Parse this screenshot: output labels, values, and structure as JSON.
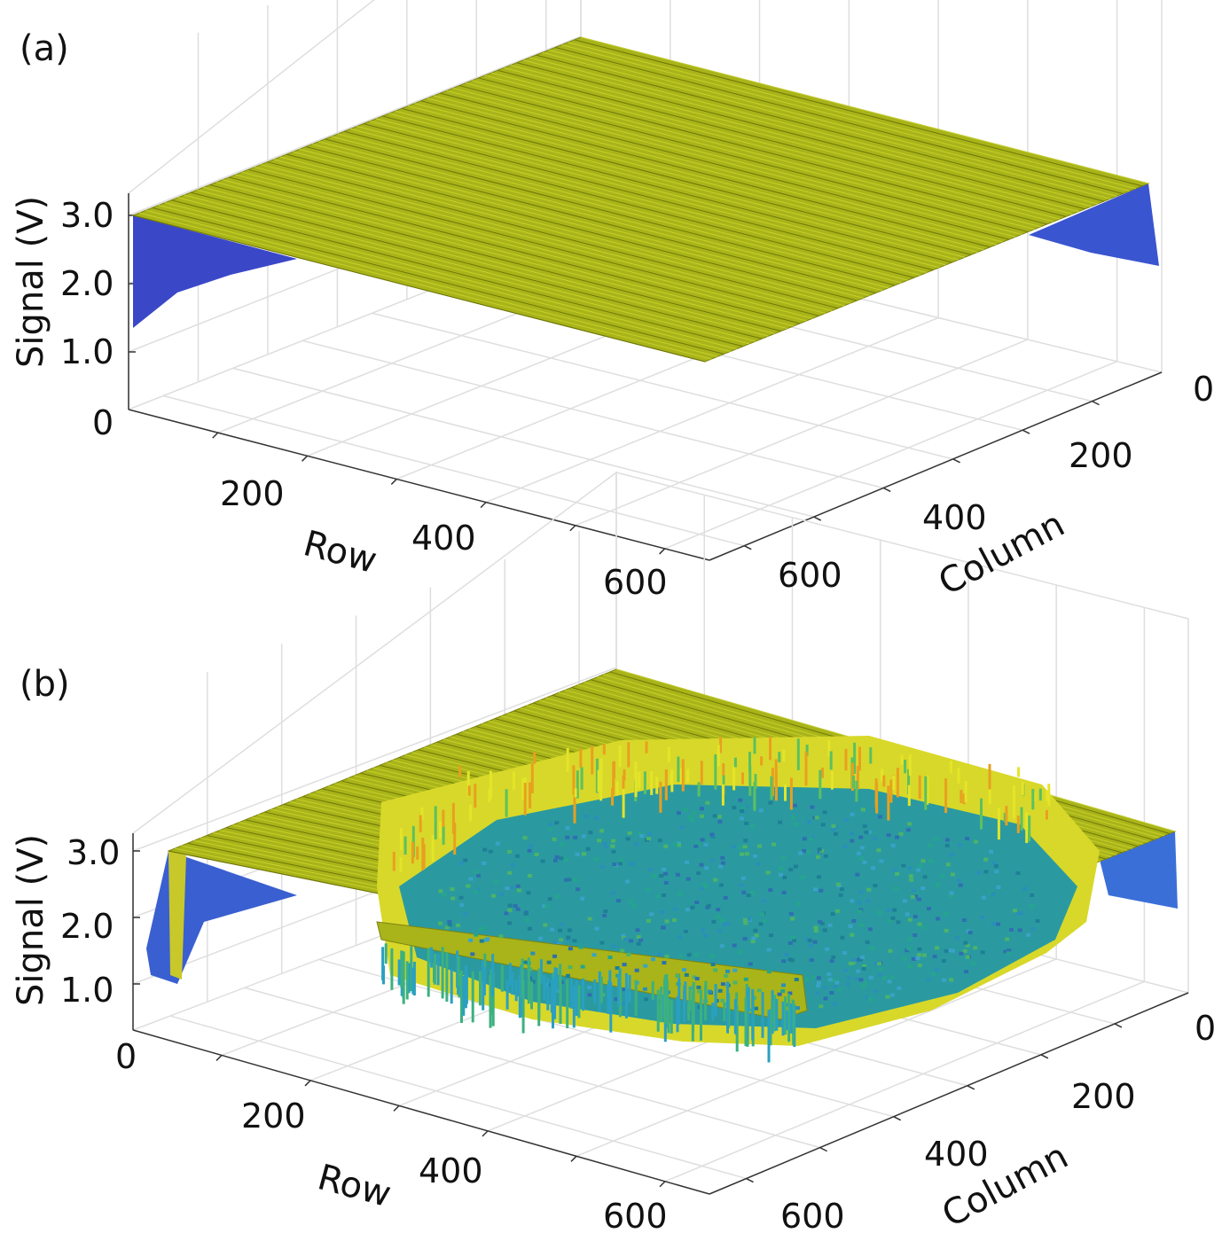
{
  "chart_data": [
    {
      "type": "surface",
      "panel_label": "(a)",
      "title": "",
      "zlabel": "Signal (V)",
      "xlabel": "Row",
      "ylabel": "Column",
      "z_ticks": [
        "3.0",
        "2.0",
        "1.0",
        "0"
      ],
      "row_ticks": [
        "200",
        "400",
        "600"
      ],
      "column_ticks": [
        "0",
        "200",
        "400",
        "600"
      ],
      "zlim": [
        0,
        3.2
      ],
      "row_range": [
        0,
        650
      ],
      "column_range": [
        0,
        650
      ],
      "description_values": {
        "plateau_signal_V": 3.0,
        "edge_min_signal_V": 1.3
      },
      "colors": {
        "plateau": "#a9b51a",
        "edge": "#3a4fd0"
      }
    },
    {
      "type": "surface",
      "panel_label": "(b)",
      "title": "",
      "zlabel": "Signal (V)",
      "xlabel": "Row",
      "ylabel": "Column",
      "z_ticks": [
        "3.0",
        "2.0",
        "1.0",
        "0"
      ],
      "row_ticks": [
        "200",
        "400",
        "600"
      ],
      "column_ticks": [
        "0",
        "200",
        "400",
        "600"
      ],
      "zlim": [
        0,
        3.2
      ],
      "row_range": [
        0,
        650
      ],
      "column_range": [
        0,
        650
      ],
      "description_values": {
        "plateau_signal_V": 3.0,
        "well_signal_V": 1.2,
        "edge_min_signal_V": 1.3
      },
      "colors": {
        "plateau": "#a9b51a",
        "well": "#2a9a9a",
        "rim": "#e8a020",
        "edge": "#3a6fd8"
      }
    }
  ]
}
